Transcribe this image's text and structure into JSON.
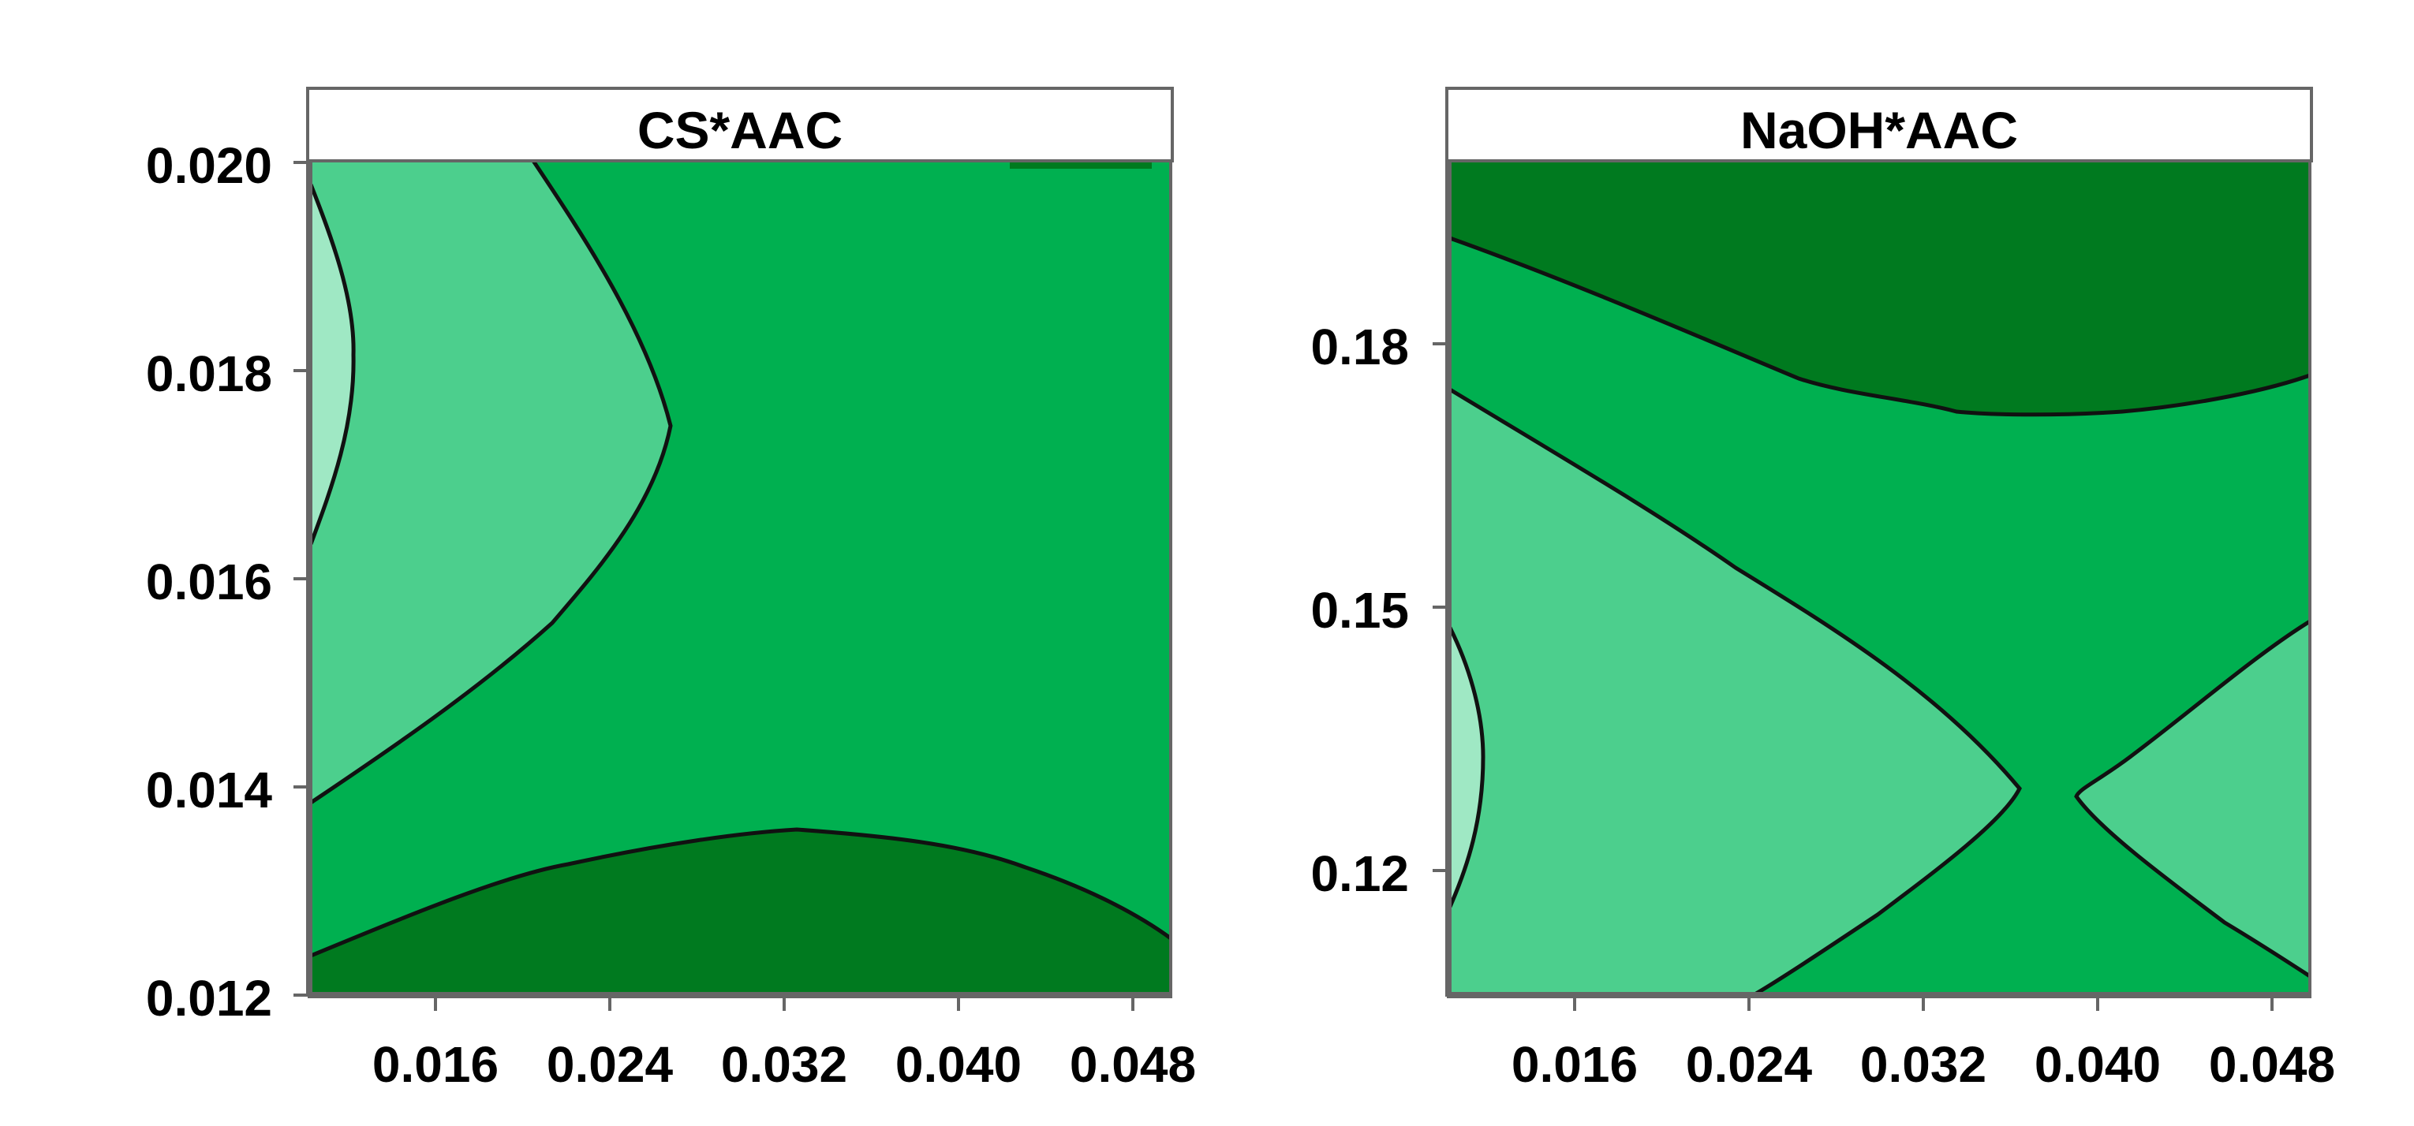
{
  "colors": {
    "lightest": "#9fe8c4",
    "light": "#4ccf8d",
    "mid": "#00b050",
    "dark": "#007a1f",
    "contour": "#111111",
    "frame": "#666666"
  },
  "chart_data": [
    {
      "type": "contour",
      "title": "CS*AAC",
      "xlabel": "",
      "ylabel": "",
      "xticks": [
        "0.016",
        "0.024",
        "0.032",
        "0.040",
        "0.048"
      ],
      "xtick_values": [
        0.016,
        0.024,
        0.032,
        0.04,
        0.048
      ],
      "xlim": [
        0.01,
        0.05
      ],
      "yticks": [
        "0.020",
        "0.018",
        "0.016",
        "0.014",
        "0.012"
      ],
      "ytick_values": [
        0.02,
        0.018,
        0.016,
        0.014,
        0.012
      ],
      "ylim": [
        0.012,
        0.02
      ],
      "regions": [
        "lightest",
        "light",
        "mid",
        "dark"
      ]
    },
    {
      "type": "contour",
      "title": "NaOH*AAC",
      "xlabel": "",
      "ylabel": "",
      "xticks": [
        "0.016",
        "0.024",
        "0.032",
        "0.040",
        "0.048"
      ],
      "xtick_values": [
        0.016,
        0.024,
        0.032,
        0.04,
        0.048
      ],
      "xlim": [
        0.01,
        0.05
      ],
      "yticks": [
        "0.18",
        "0.15",
        "0.12"
      ],
      "ytick_values": [
        0.18,
        0.15,
        0.12
      ],
      "ylim": [
        0.105,
        0.2
      ],
      "regions": [
        "lightest",
        "light",
        "mid",
        "dark"
      ]
    }
  ]
}
